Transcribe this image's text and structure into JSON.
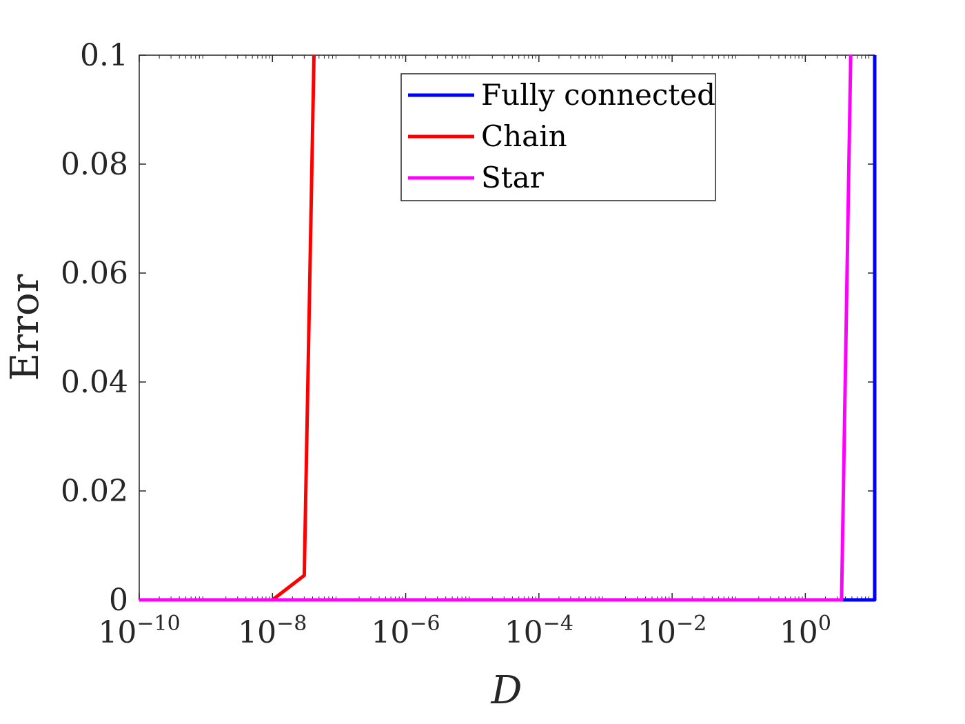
{
  "chart_data": {
    "type": "line",
    "title": "",
    "xlabel": "D",
    "ylabel": "Error",
    "xscale": "log",
    "xlim": [
      1e-10,
      11
    ],
    "ylim": [
      0,
      0.1
    ],
    "grid": false,
    "legend_position": "top-center",
    "x_ticks": [
      {
        "value": 1e-10,
        "base": "10",
        "exp": "−10"
      },
      {
        "value": 1e-08,
        "base": "10",
        "exp": "−8"
      },
      {
        "value": 1e-06,
        "base": "10",
        "exp": "−6"
      },
      {
        "value": 0.0001,
        "base": "10",
        "exp": "−4"
      },
      {
        "value": 0.01,
        "base": "10",
        "exp": "−2"
      },
      {
        "value": 1,
        "base": "10",
        "exp": "0"
      }
    ],
    "y_ticks": [
      {
        "value": 0,
        "label": "0"
      },
      {
        "value": 0.02,
        "label": "0.02"
      },
      {
        "value": 0.04,
        "label": "0.04"
      },
      {
        "value": 0.06,
        "label": "0.06"
      },
      {
        "value": 0.08,
        "label": "0.08"
      },
      {
        "value": 0.1,
        "label": "0.1"
      }
    ],
    "series": [
      {
        "name": "Fully connected",
        "color": "#0000ff",
        "x": [
          1e-10,
          1e-08,
          0.0001,
          1,
          10,
          11,
          11
        ],
        "y": [
          0,
          0,
          0,
          0,
          0,
          0,
          0.1
        ]
      },
      {
        "name": "Chain",
        "color": "#ff0000",
        "x": [
          1e-10,
          1e-08,
          3e-08,
          4.2e-08
        ],
        "y": [
          0,
          0,
          0.0045,
          0.1
        ]
      },
      {
        "name": "Star",
        "color": "#ff00ff",
        "x": [
          1e-10,
          1e-08,
          0.0001,
          0.01,
          1,
          3.5,
          4.8
        ],
        "y": [
          0,
          0,
          0,
          0,
          0,
          0,
          0.1
        ]
      }
    ]
  }
}
